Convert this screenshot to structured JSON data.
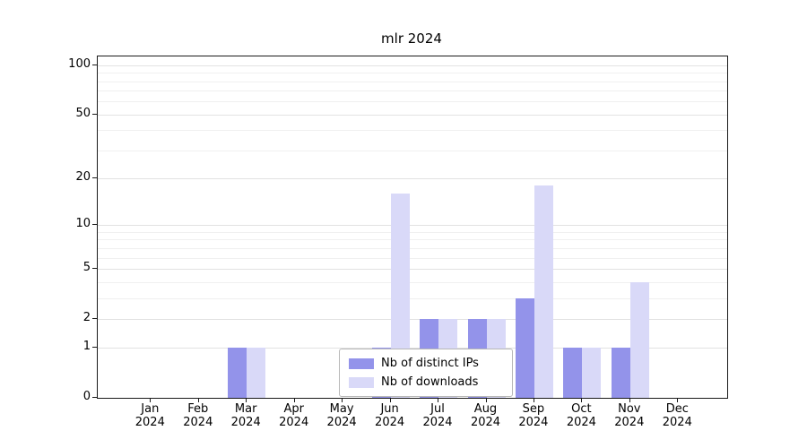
{
  "chart_data": {
    "type": "bar",
    "title": "mlr 2024",
    "categories": [
      "Jan 2024",
      "Feb 2024",
      "Mar 2024",
      "Apr 2024",
      "May 2024",
      "Jun 2024",
      "Jul 2024",
      "Aug 2024",
      "Sep 2024",
      "Oct 2024",
      "Nov 2024",
      "Dec 2024"
    ],
    "series": [
      {
        "name": "Nb of distinct IPs",
        "color": "#9393ea",
        "values": [
          0,
          0,
          1,
          0,
          0,
          1,
          2,
          2,
          3,
          1,
          1,
          0
        ]
      },
      {
        "name": "Nb of downloads",
        "color": "#d9d9f8",
        "values": [
          0,
          0,
          1,
          0,
          0,
          16,
          2,
          2,
          18,
          1,
          4,
          0
        ]
      }
    ],
    "y_axis": {
      "scale": "log1p",
      "max": 113,
      "ticks": [
        0,
        1,
        2,
        5,
        10,
        20,
        50,
        100
      ],
      "tick_labels": [
        "0",
        "1",
        "2",
        "5",
        "10",
        "20",
        "50",
        "100"
      ],
      "minor_ticks": [
        3,
        4,
        6,
        7,
        8,
        9,
        30,
        40,
        60,
        70,
        80,
        90
      ]
    },
    "x_axis": {
      "label": ""
    },
    "legend": {
      "position": "lower center",
      "entries": [
        "Nb of distinct IPs",
        "Nb of downloads"
      ]
    },
    "grid": true,
    "ylim": [
      0,
      113
    ]
  }
}
